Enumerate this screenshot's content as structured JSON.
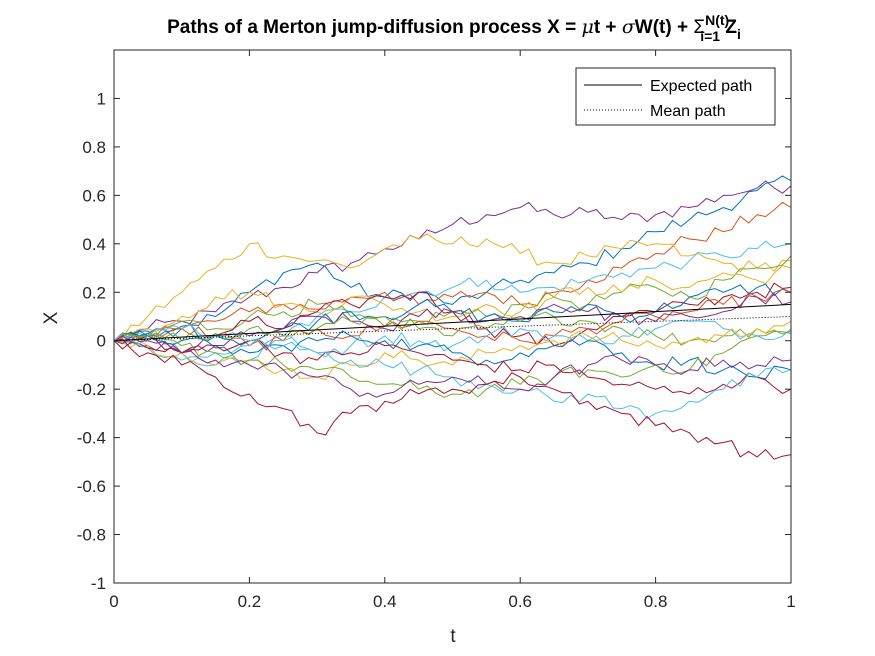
{
  "chart_data": {
    "type": "line",
    "title": {
      "prefix": "Paths of a Merton jump-diffusion process X = ",
      "mu": "μ",
      "t": "t + ",
      "sigma": "σ",
      "w": "W(t) + ",
      "sum": "Σ",
      "sup": "N(t)",
      "sub": "i=1",
      "z": " Z",
      "zsub": "i"
    },
    "xlabel": "t",
    "ylabel": "X",
    "xlim": [
      0,
      1
    ],
    "ylim": [
      -1,
      1.2
    ],
    "xticks": [
      0,
      0.2,
      0.4,
      0.6,
      0.8,
      1
    ],
    "xtick_labels": [
      "0",
      "0.2",
      "0.4",
      "0.6",
      "0.8",
      "1"
    ],
    "yticks": [
      -1,
      -0.8,
      -0.6,
      -0.4,
      -0.2,
      0,
      0.2,
      0.4,
      0.6,
      0.8,
      1
    ],
    "ytick_labels": [
      "-1",
      "-0.8",
      "-0.6",
      "-0.4",
      "-0.2",
      "0",
      "0.2",
      "0.4",
      "0.6",
      "0.8",
      "1"
    ],
    "grid": false,
    "legend_position": "top-right",
    "legend": [
      {
        "label": "Expected path",
        "style": "solid",
        "color": "#000000"
      },
      {
        "label": "Mean path",
        "style": "dotted",
        "color": "#000000"
      }
    ],
    "x": [
      0,
      0.05,
      0.1,
      0.15,
      0.2,
      0.25,
      0.3,
      0.35,
      0.4,
      0.45,
      0.5,
      0.55,
      0.6,
      0.65,
      0.7,
      0.75,
      0.8,
      0.85,
      0.9,
      0.95,
      1
    ],
    "series": [
      {
        "color": "#7E2F8E",
        "values": [
          0,
          0.05,
          0.08,
          0.12,
          0.18,
          0.22,
          0.28,
          0.32,
          0.38,
          0.42,
          0.48,
          0.52,
          0.55,
          0.52,
          0.53,
          0.5,
          0.52,
          0.55,
          0.6,
          0.63,
          0.64
        ]
      },
      {
        "color": "#0072BD",
        "values": [
          0,
          0.04,
          0.06,
          0.1,
          0.2,
          0.28,
          0.32,
          0.22,
          0.18,
          0.2,
          0.15,
          0.2,
          0.25,
          0.28,
          0.32,
          0.38,
          0.45,
          0.5,
          0.55,
          0.62,
          0.66
        ]
      },
      {
        "color": "#D95319",
        "values": [
          0,
          0.03,
          0.05,
          0.08,
          0.12,
          0.15,
          0.13,
          0.18,
          0.2,
          0.15,
          0.18,
          0.2,
          0.15,
          0.2,
          0.25,
          0.3,
          0.36,
          0.42,
          0.45,
          0.52,
          0.55
        ]
      },
      {
        "color": "#EDB120",
        "values": [
          0,
          0.1,
          0.2,
          0.3,
          0.4,
          0.35,
          0.33,
          0.3,
          0.38,
          0.42,
          0.4,
          0.42,
          0.36,
          0.32,
          0.35,
          0.38,
          0.4,
          0.35,
          0.32,
          0.3,
          0.33
        ]
      },
      {
        "color": "#4DBEEE",
        "values": [
          0,
          0.02,
          -0.05,
          -0.1,
          -0.08,
          0.02,
          0.1,
          0.12,
          0.18,
          0.2,
          0.22,
          0.25,
          0.2,
          0.22,
          0.25,
          0.28,
          0.3,
          0.33,
          0.35,
          0.38,
          0.4
        ]
      },
      {
        "color": "#77AC30",
        "values": [
          0,
          0.02,
          0.08,
          0.05,
          0.1,
          0.12,
          0.15,
          0.1,
          0.06,
          0.08,
          0.12,
          0.1,
          0.15,
          0.18,
          0.15,
          0.2,
          0.22,
          0.18,
          0.25,
          0.3,
          0.35
        ]
      },
      {
        "color": "#EDB120",
        "values": [
          0,
          0.05,
          0.1,
          0.18,
          0.2,
          0.15,
          0.12,
          0.18,
          0.15,
          0.12,
          0.1,
          0.15,
          0.12,
          0.18,
          0.22,
          0.2,
          0.25,
          0.22,
          0.28,
          0.25,
          0.3
        ]
      },
      {
        "color": "#A2142F",
        "values": [
          0,
          0.02,
          -0.05,
          0.02,
          0.08,
          0.05,
          0.12,
          0.15,
          0.18,
          0.2,
          0.12,
          0.05,
          0.02,
          -0.02,
          0.05,
          0.1,
          0.12,
          0.15,
          0.18,
          0.2,
          0.22
        ]
      },
      {
        "color": "#0072BD",
        "values": [
          0,
          0.03,
          0.05,
          0.02,
          0.0,
          0.05,
          0.08,
          0.12,
          0.1,
          0.15,
          0.12,
          0.1,
          0.08,
          0.12,
          0.15,
          0.1,
          0.12,
          0.18,
          0.2,
          0.22,
          0.2
        ]
      },
      {
        "color": "#D95319",
        "values": [
          0,
          0.02,
          0.05,
          0.02,
          -0.02,
          0.0,
          0.05,
          0.02,
          0.06,
          0.08,
          0.05,
          0.02,
          0.0,
          0.02,
          0.05,
          0.08,
          0.1,
          0.12,
          0.15,
          0.18,
          0.2
        ]
      },
      {
        "color": "#7E2F8E",
        "values": [
          0,
          -0.02,
          -0.05,
          -0.02,
          0.02,
          0.05,
          0.1,
          0.08,
          0.05,
          0.1,
          0.12,
          0.08,
          0.1,
          0.15,
          0.12,
          0.1,
          0.08,
          0.1,
          0.12,
          0.18,
          0.16
        ]
      },
      {
        "color": "#77AC30",
        "values": [
          0,
          0.02,
          0.0,
          0.03,
          0.05,
          0.02,
          0.05,
          0.08,
          0.1,
          0.05,
          0.02,
          0.05,
          0.08,
          0.1,
          0.08,
          0.05,
          0.02,
          0.0,
          0.02,
          0.05,
          0.04
        ]
      },
      {
        "color": "#4DBEEE",
        "values": [
          0,
          -0.03,
          -0.08,
          -0.05,
          -0.02,
          0.0,
          -0.05,
          -0.02,
          0.02,
          0.0,
          -0.02,
          0.02,
          0.05,
          0.02,
          0.0,
          0.02,
          0.05,
          0.08,
          0.05,
          0.02,
          0.05
        ]
      },
      {
        "color": "#EDB120",
        "values": [
          0,
          -0.02,
          -0.05,
          -0.1,
          -0.08,
          -0.12,
          -0.15,
          -0.1,
          -0.05,
          -0.08,
          -0.1,
          -0.05,
          -0.02,
          0.0,
          0.02,
          0.0,
          -0.02,
          0.0,
          0.02,
          0.05,
          0.08
        ]
      },
      {
        "color": "#0072BD",
        "values": [
          0,
          0.02,
          0.0,
          -0.03,
          -0.05,
          -0.02,
          0.0,
          0.02,
          0.0,
          -0.02,
          -0.05,
          -0.08,
          -0.05,
          -0.02,
          0.0,
          -0.05,
          -0.1,
          -0.08,
          -0.12,
          -0.15,
          -0.12
        ]
      },
      {
        "color": "#77AC30",
        "values": [
          0,
          0.0,
          -0.02,
          -0.05,
          -0.08,
          -0.1,
          -0.12,
          -0.15,
          -0.18,
          -0.2,
          -0.22,
          -0.2,
          -0.18,
          -0.15,
          -0.12,
          -0.15,
          -0.1,
          -0.12,
          -0.05,
          0.02,
          0.03
        ]
      },
      {
        "color": "#A2142F",
        "values": [
          0,
          -0.03,
          -0.05,
          -0.02,
          0.0,
          -0.05,
          -0.08,
          -0.05,
          -0.02,
          -0.05,
          -0.08,
          -0.1,
          -0.12,
          -0.1,
          -0.15,
          -0.18,
          -0.2,
          -0.22,
          -0.18,
          -0.15,
          -0.2
        ]
      },
      {
        "color": "#4DBEEE",
        "values": [
          0,
          0.02,
          0.05,
          0.02,
          0.0,
          -0.02,
          -0.05,
          -0.08,
          -0.1,
          -0.12,
          -0.15,
          -0.18,
          -0.2,
          -0.25,
          -0.22,
          -0.28,
          -0.3,
          -0.25,
          -0.2,
          -0.15,
          -0.12
        ]
      },
      {
        "color": "#7E2F8E",
        "values": [
          0,
          0.0,
          -0.05,
          -0.08,
          -0.1,
          -0.12,
          -0.15,
          -0.2,
          -0.22,
          -0.18,
          -0.15,
          -0.18,
          -0.2,
          -0.15,
          -0.1,
          -0.08,
          -0.1,
          -0.12,
          -0.08,
          -0.1,
          -0.08
        ]
      },
      {
        "color": "#A2142F",
        "values": [
          0,
          -0.05,
          -0.1,
          -0.15,
          -0.22,
          -0.28,
          -0.38,
          -0.3,
          -0.25,
          -0.22,
          -0.2,
          -0.18,
          -0.15,
          -0.2,
          -0.25,
          -0.3,
          -0.35,
          -0.38,
          -0.42,
          -0.48,
          -0.47
        ]
      }
    ],
    "expected_path": {
      "start": 0,
      "end": 0.15
    },
    "mean_path": {
      "start": 0,
      "end": 0.1
    }
  }
}
